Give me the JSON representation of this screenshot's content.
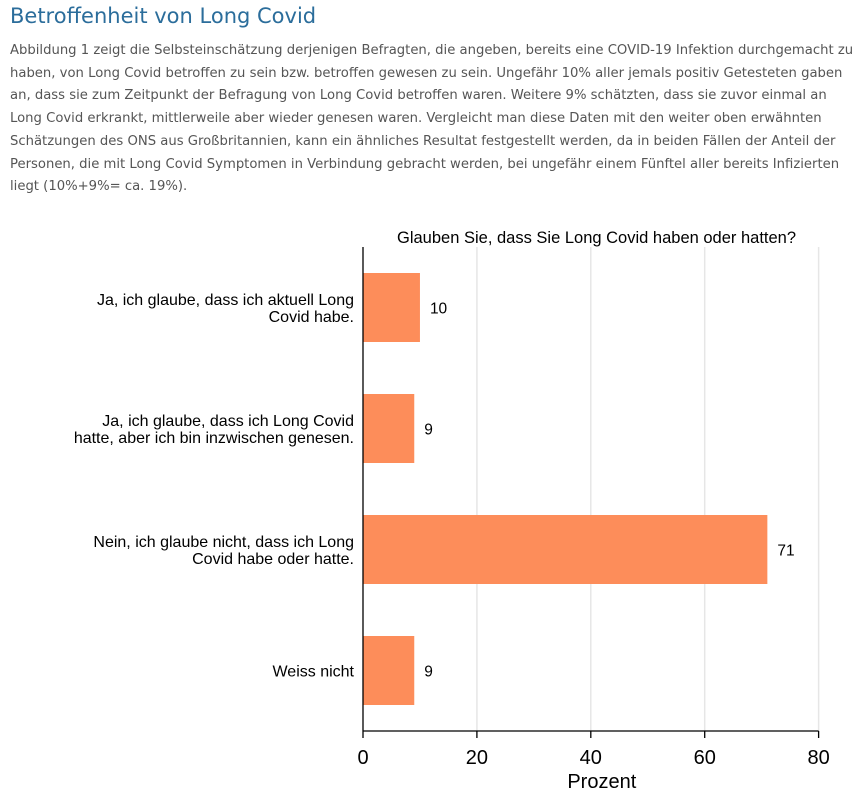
{
  "article": {
    "heading": "Betroffenheit von Long Covid",
    "body_lines": [
      "Abbildung 1 zeigt die Selbsteinschätzung derjenigen Befragten, die angeben, bereits eine COVID-19 Infektion durchgemacht zu",
      "haben, von Long Covid betroffen zu sein bzw. betroffen gewesen zu sein. Ungefähr 10% aller jemals positiv Getesteten gaben",
      "an, dass sie zum Zeitpunkt der Befragung von Long Covid betroffen waren. Weitere 9% schätzten, dass sie zuvor einmal an",
      "Long Covid erkrankt, mittlerweile aber wieder genesen waren. Vergleicht man diese Daten mit den weiter oben erwähnten",
      "Schätzungen des ONS aus Großbritannien, kann ein ähnliches Resultat festgestellt werden, da in beiden Fällen der Anteil der",
      "Personen, die mit Long Covid Symptomen in Verbindung gebracht werden, bei ungefähr einem Fünftel aller bereits Infizierten",
      "liegt (10%+9%= ca. 19%)."
    ]
  },
  "chart_data": {
    "type": "bar",
    "orientation": "horizontal",
    "title": "Glauben Sie, dass Sie Long Covid haben oder hatten?",
    "xlabel": "Prozent",
    "ylabel": "",
    "categories": [
      [
        "Ja, ich glaube, dass ich aktuell Long",
        "Covid habe."
      ],
      [
        "Ja, ich glaube, dass ich Long Covid",
        "hatte, aber ich bin inzwischen genesen."
      ],
      [
        "Nein, ich glaube nicht, dass ich Long",
        "Covid habe oder hatte."
      ],
      [
        "Weiss nicht"
      ]
    ],
    "values": [
      10,
      9,
      71,
      9
    ],
    "data_labels": [
      "10",
      "9",
      "71",
      "9"
    ],
    "xlim": [
      0,
      82
    ],
    "xticks": [
      0,
      20,
      40,
      60,
      80
    ],
    "xtick_labels": [
      "0",
      "20",
      "40",
      "60",
      "80"
    ],
    "grid": true,
    "bar_color": "#fd8d5a",
    "grid_color": "#e6e6e6"
  }
}
